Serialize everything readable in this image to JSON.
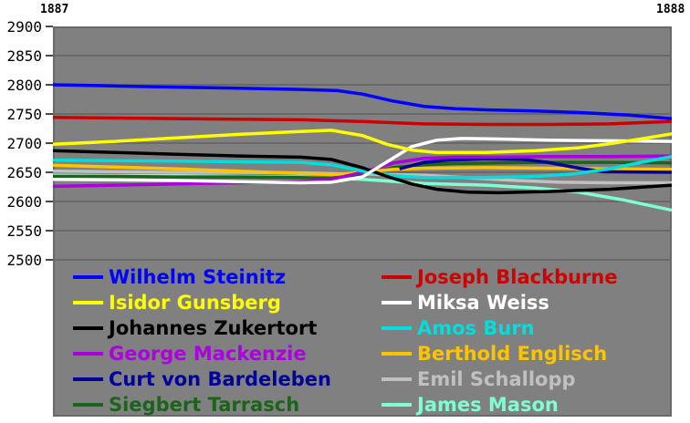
{
  "chart": {
    "x_start_label": "1887",
    "x_end_label": "1888",
    "y_ticks": [
      2900,
      2850,
      2800,
      2750,
      2700,
      2650,
      2600,
      2550,
      2500
    ],
    "plot_background": "#808080",
    "gridline_color": "#696969",
    "tick_color": "#4a4a4a"
  },
  "chart_data": {
    "type": "line",
    "title": "",
    "xlabel": "",
    "ylabel": "",
    "x_range": [
      1887,
      1888
    ],
    "ylim": [
      2500,
      2900
    ],
    "grid": true,
    "legend_position": "bottom",
    "series": [
      {
        "name": "Wilhelm Steinitz",
        "color": "#0000ff",
        "points": [
          [
            1887.0,
            2800
          ],
          [
            1887.1,
            2798
          ],
          [
            1887.2,
            2796
          ],
          [
            1887.3,
            2794
          ],
          [
            1887.4,
            2792
          ],
          [
            1887.46,
            2790
          ],
          [
            1887.5,
            2784
          ],
          [
            1887.55,
            2772
          ],
          [
            1887.6,
            2763
          ],
          [
            1887.65,
            2759
          ],
          [
            1887.7,
            2757
          ],
          [
            1887.78,
            2755
          ],
          [
            1887.86,
            2752
          ],
          [
            1887.93,
            2748
          ],
          [
            1888.0,
            2742
          ]
        ]
      },
      {
        "name": "Isidor Gunsberg",
        "color": "#ffff00",
        "points": [
          [
            1887.0,
            2698
          ],
          [
            1887.1,
            2703
          ],
          [
            1887.2,
            2709
          ],
          [
            1887.3,
            2715
          ],
          [
            1887.4,
            2720
          ],
          [
            1887.45,
            2722
          ],
          [
            1887.5,
            2713
          ],
          [
            1887.54,
            2698
          ],
          [
            1887.58,
            2688
          ],
          [
            1887.62,
            2684
          ],
          [
            1887.7,
            2684
          ],
          [
            1887.78,
            2687
          ],
          [
            1887.85,
            2692
          ],
          [
            1887.9,
            2699
          ],
          [
            1887.95,
            2707
          ],
          [
            1888.0,
            2716
          ]
        ]
      },
      {
        "name": "Johannes Zukertort",
        "color": "#000000",
        "points": [
          [
            1887.0,
            2687
          ],
          [
            1887.1,
            2684
          ],
          [
            1887.2,
            2681
          ],
          [
            1887.3,
            2678
          ],
          [
            1887.4,
            2676
          ],
          [
            1887.45,
            2672
          ],
          [
            1887.5,
            2658
          ],
          [
            1887.54,
            2643
          ],
          [
            1887.58,
            2630
          ],
          [
            1887.62,
            2621
          ],
          [
            1887.67,
            2616
          ],
          [
            1887.72,
            2615
          ],
          [
            1887.8,
            2617
          ],
          [
            1887.9,
            2621
          ],
          [
            1888.0,
            2628
          ]
        ]
      },
      {
        "name": "George Mackenzie",
        "color": "#aa00dd",
        "points": [
          [
            1887.0,
            2626
          ],
          [
            1887.1,
            2628
          ],
          [
            1887.2,
            2630
          ],
          [
            1887.3,
            2632
          ],
          [
            1887.4,
            2634
          ],
          [
            1887.45,
            2638
          ],
          [
            1887.5,
            2650
          ],
          [
            1887.55,
            2666
          ],
          [
            1887.6,
            2674
          ],
          [
            1887.65,
            2676
          ],
          [
            1887.72,
            2676
          ],
          [
            1887.8,
            2677
          ],
          [
            1887.9,
            2677
          ],
          [
            1888.0,
            2678
          ]
        ]
      },
      {
        "name": "Curt von Bardeleben",
        "color": "#000099",
        "points": [
          [
            1887.56,
            2656
          ],
          [
            1887.6,
            2667
          ],
          [
            1887.64,
            2671
          ],
          [
            1887.7,
            2673
          ],
          [
            1887.76,
            2672
          ],
          [
            1887.8,
            2667
          ],
          [
            1887.85,
            2657
          ],
          [
            1887.89,
            2651
          ],
          [
            1888.0,
            2650
          ]
        ]
      },
      {
        "name": "Siegbert Tarrasch",
        "color": "#1c641c",
        "points": [
          [
            1887.0,
            2643
          ],
          [
            1887.1,
            2643
          ],
          [
            1887.2,
            2642
          ],
          [
            1887.3,
            2642
          ],
          [
            1887.4,
            2641
          ],
          [
            1887.45,
            2640
          ],
          [
            1887.5,
            2647
          ],
          [
            1887.55,
            2658
          ],
          [
            1887.6,
            2663
          ],
          [
            1887.65,
            2665
          ],
          [
            1887.72,
            2666
          ],
          [
            1887.8,
            2667
          ],
          [
            1887.9,
            2667
          ],
          [
            1888.0,
            2666
          ]
        ]
      },
      {
        "name": "Joseph Blackburne",
        "color": "#cc0000",
        "points": [
          [
            1887.0,
            2744
          ],
          [
            1887.1,
            2743
          ],
          [
            1887.2,
            2742
          ],
          [
            1887.3,
            2741
          ],
          [
            1887.4,
            2740
          ],
          [
            1887.5,
            2737
          ],
          [
            1887.55,
            2735
          ],
          [
            1887.6,
            2733
          ],
          [
            1887.7,
            2732
          ],
          [
            1887.8,
            2732
          ],
          [
            1887.9,
            2733
          ],
          [
            1888.0,
            2737
          ]
        ]
      },
      {
        "name": "Miksa Weiss",
        "color": "#ffffff",
        "points": [
          [
            1887.0,
            2638
          ],
          [
            1887.1,
            2637
          ],
          [
            1887.2,
            2636
          ],
          [
            1887.3,
            2634
          ],
          [
            1887.4,
            2632
          ],
          [
            1887.45,
            2633
          ],
          [
            1887.5,
            2642
          ],
          [
            1887.54,
            2668
          ],
          [
            1887.58,
            2694
          ],
          [
            1887.62,
            2705
          ],
          [
            1887.66,
            2708
          ],
          [
            1887.72,
            2707
          ],
          [
            1887.8,
            2705
          ],
          [
            1887.9,
            2704
          ],
          [
            1888.0,
            2703
          ]
        ]
      },
      {
        "name": "Amos Burn",
        "color": "#00dddd",
        "points": [
          [
            1887.0,
            2671
          ],
          [
            1887.1,
            2670
          ],
          [
            1887.2,
            2669
          ],
          [
            1887.3,
            2668
          ],
          [
            1887.4,
            2667
          ],
          [
            1887.45,
            2663
          ],
          [
            1887.5,
            2652
          ],
          [
            1887.55,
            2644
          ],
          [
            1887.6,
            2641
          ],
          [
            1887.7,
            2641
          ],
          [
            1887.78,
            2643
          ],
          [
            1887.84,
            2647
          ],
          [
            1887.9,
            2656
          ],
          [
            1887.95,
            2667
          ],
          [
            1888.0,
            2677
          ]
        ]
      },
      {
        "name": "Berthold Englisch",
        "color": "#ffc400",
        "points": [
          [
            1887.0,
            2662
          ],
          [
            1887.1,
            2659
          ],
          [
            1887.2,
            2656
          ],
          [
            1887.3,
            2652
          ],
          [
            1887.4,
            2648
          ],
          [
            1887.45,
            2646
          ],
          [
            1887.5,
            2650
          ],
          [
            1887.55,
            2655
          ],
          [
            1887.6,
            2657
          ],
          [
            1887.7,
            2658
          ],
          [
            1887.8,
            2657
          ],
          [
            1887.9,
            2656
          ],
          [
            1888.0,
            2655
          ]
        ]
      },
      {
        "name": "Emil Schallopp",
        "color": "#c0c0c0",
        "points": [
          [
            1887.0,
            2652
          ],
          [
            1887.1,
            2651
          ],
          [
            1887.2,
            2650
          ],
          [
            1887.3,
            2650
          ],
          [
            1887.4,
            2649
          ],
          [
            1887.5,
            2647
          ],
          [
            1887.6,
            2645
          ],
          [
            1887.68,
            2640
          ],
          [
            1887.75,
            2636
          ],
          [
            1887.82,
            2633
          ],
          [
            1887.9,
            2632
          ],
          [
            1888.0,
            2632
          ]
        ]
      },
      {
        "name": "James Mason",
        "color": "#7fffd4",
        "points": [
          [
            1887.0,
            2645
          ],
          [
            1887.1,
            2644
          ],
          [
            1887.2,
            2644
          ],
          [
            1887.3,
            2643
          ],
          [
            1887.4,
            2642
          ],
          [
            1887.5,
            2638
          ],
          [
            1887.6,
            2631
          ],
          [
            1887.7,
            2628
          ],
          [
            1887.78,
            2623
          ],
          [
            1887.85,
            2616
          ],
          [
            1887.92,
            2603
          ],
          [
            1888.0,
            2585
          ]
        ]
      }
    ]
  },
  "legend": {
    "columns": [
      [
        0,
        1,
        2,
        3,
        4,
        5
      ],
      [
        6,
        7,
        8,
        9,
        10,
        11
      ]
    ]
  }
}
